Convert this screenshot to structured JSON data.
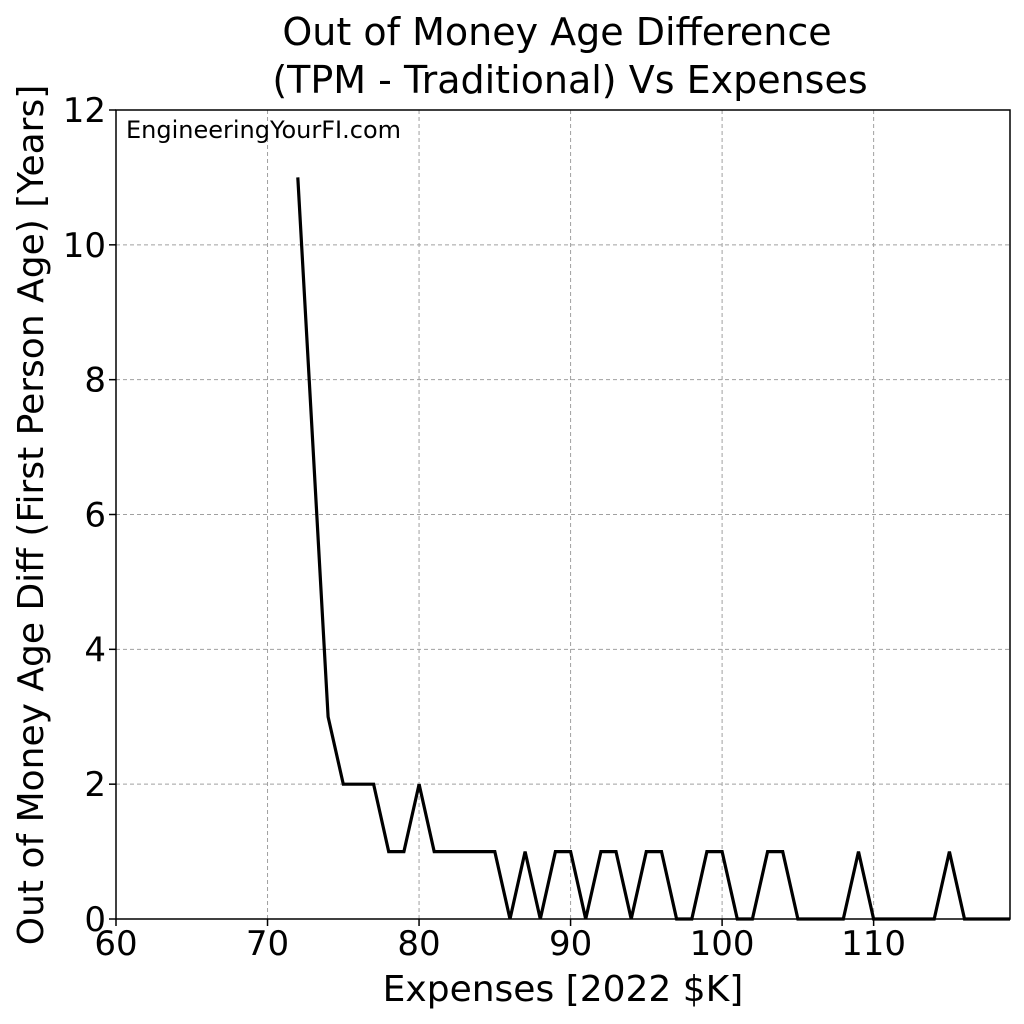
{
  "chart_data": {
    "type": "line",
    "title_line1": "Out of Money Age Difference",
    "title_line2": "(TPM - Traditional) Vs Expenses",
    "xlabel": "Expenses [2022 $K]",
    "ylabel": "Out of Money Age Diff (First Person Age) [Years]",
    "watermark": "EngineeringYourFI.com",
    "xlim": [
      60,
      119
    ],
    "ylim": [
      0,
      12
    ],
    "xticks": [
      60,
      70,
      80,
      90,
      100,
      110
    ],
    "yticks": [
      0,
      2,
      4,
      6,
      8,
      10,
      12
    ],
    "grid": true,
    "series_color": "#000000",
    "series": [
      {
        "x": [
          72,
          73,
          74,
          75,
          76,
          77,
          78,
          79,
          80,
          81,
          82,
          83,
          84,
          85,
          86,
          87,
          88,
          89,
          90,
          91,
          92,
          93,
          94,
          95,
          96,
          97,
          98,
          99,
          100,
          101,
          102,
          103,
          104,
          105,
          106,
          107,
          108,
          109,
          110,
          111,
          112,
          113,
          114,
          115,
          116,
          117,
          118,
          119
        ],
        "y": [
          11,
          7,
          3,
          2,
          2,
          2,
          1,
          1,
          2,
          1,
          1,
          1,
          1,
          1,
          0,
          1,
          0,
          1,
          1,
          0,
          1,
          1,
          0,
          1,
          1,
          0,
          0,
          1,
          1,
          0,
          0,
          1,
          1,
          0,
          0,
          0,
          0,
          1,
          0,
          0,
          0,
          0,
          0,
          1,
          0,
          0,
          0,
          0
        ]
      }
    ]
  }
}
